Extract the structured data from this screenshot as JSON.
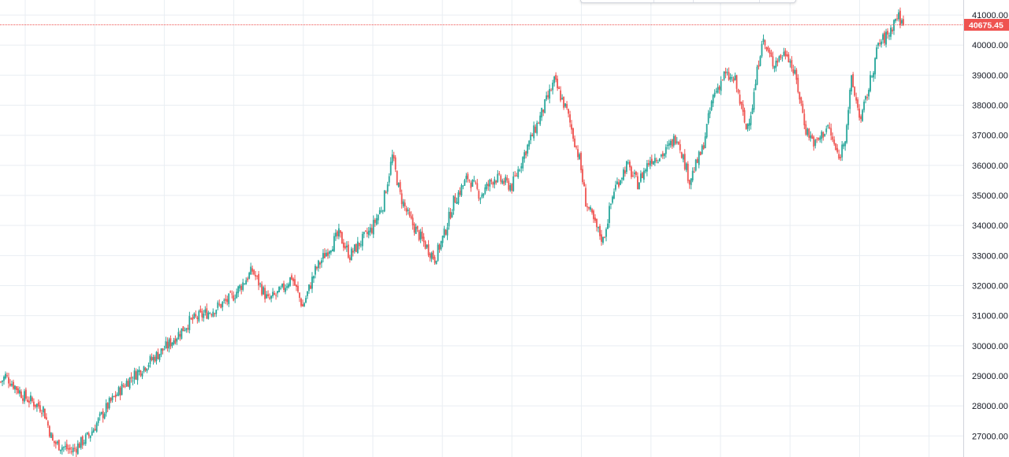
{
  "chart_data": {
    "type": "candlestick",
    "instrument": "",
    "title": "",
    "ylim": [
      26300,
      41500
    ],
    "y_ticks": [
      27000,
      28000,
      29000,
      30000,
      31000,
      32000,
      33000,
      34000,
      35000,
      36000,
      37000,
      38000,
      39000,
      40000,
      41000
    ],
    "y_tick_labels": [
      "27000.00",
      "28000.00",
      "29000.00",
      "30000.00",
      "31000.00",
      "32000.00",
      "33000.00",
      "34000.00",
      "35000.00",
      "36000.00",
      "37000.00",
      "38000.00",
      "39000.00",
      "40000.00",
      "41000.00"
    ],
    "grid": true,
    "y_axis_position": "right",
    "last_price": 40675.45,
    "last_price_label": "40675.45",
    "up_color": "#26a69a",
    "down_color": "#ef5350",
    "price_line_color": "#ef5350",
    "grid_color": "#e9eef3",
    "approx_close_path": [
      {
        "bar": 0,
        "close": 28800
      },
      {
        "bar": 3,
        "close": 29000
      },
      {
        "bar": 15,
        "close": 28300
      },
      {
        "bar": 27,
        "close": 27900
      },
      {
        "bar": 33,
        "close": 26800
      },
      {
        "bar": 45,
        "close": 26500
      },
      {
        "bar": 56,
        "close": 27000
      },
      {
        "bar": 68,
        "close": 28000
      },
      {
        "bar": 80,
        "close": 28800
      },
      {
        "bar": 93,
        "close": 29400
      },
      {
        "bar": 106,
        "close": 30000
      },
      {
        "bar": 120,
        "close": 30800
      },
      {
        "bar": 135,
        "close": 31200
      },
      {
        "bar": 147,
        "close": 31600
      },
      {
        "bar": 160,
        "close": 32500
      },
      {
        "bar": 170,
        "close": 31500
      },
      {
        "bar": 178,
        "close": 31800
      },
      {
        "bar": 185,
        "close": 32300
      },
      {
        "bar": 192,
        "close": 31300
      },
      {
        "bar": 200,
        "close": 32500
      },
      {
        "bar": 208,
        "close": 33200
      },
      {
        "bar": 215,
        "close": 33700
      },
      {
        "bar": 222,
        "close": 33000
      },
      {
        "bar": 228,
        "close": 33400
      },
      {
        "bar": 236,
        "close": 33900
      },
      {
        "bar": 243,
        "close": 34700
      },
      {
        "bar": 249,
        "close": 36300
      },
      {
        "bar": 254,
        "close": 35000
      },
      {
        "bar": 260,
        "close": 34200
      },
      {
        "bar": 268,
        "close": 33500
      },
      {
        "bar": 276,
        "close": 32900
      },
      {
        "bar": 282,
        "close": 33700
      },
      {
        "bar": 288,
        "close": 34800
      },
      {
        "bar": 297,
        "close": 35600
      },
      {
        "bar": 305,
        "close": 35000
      },
      {
        "bar": 314,
        "close": 35600
      },
      {
        "bar": 325,
        "close": 35300
      },
      {
        "bar": 333,
        "close": 36400
      },
      {
        "bar": 343,
        "close": 37600
      },
      {
        "bar": 352,
        "close": 38800
      },
      {
        "bar": 360,
        "close": 37800
      },
      {
        "bar": 368,
        "close": 36200
      },
      {
        "bar": 372,
        "close": 34800
      },
      {
        "bar": 378,
        "close": 34000
      },
      {
        "bar": 383,
        "close": 33500
      },
      {
        "bar": 390,
        "close": 35200
      },
      {
        "bar": 398,
        "close": 36000
      },
      {
        "bar": 405,
        "close": 35400
      },
      {
        "bar": 413,
        "close": 36200
      },
      {
        "bar": 422,
        "close": 36400
      },
      {
        "bar": 430,
        "close": 37000
      },
      {
        "bar": 438,
        "close": 35500
      },
      {
        "bar": 446,
        "close": 36500
      },
      {
        "bar": 453,
        "close": 38300
      },
      {
        "bar": 460,
        "close": 39000
      },
      {
        "bar": 467,
        "close": 38800
      },
      {
        "bar": 474,
        "close": 37200
      },
      {
        "bar": 478,
        "close": 38000
      },
      {
        "bar": 484,
        "close": 40200
      },
      {
        "bar": 491,
        "close": 39400
      },
      {
        "bar": 500,
        "close": 39800
      },
      {
        "bar": 506,
        "close": 38800
      },
      {
        "bar": 512,
        "close": 37200
      },
      {
        "bar": 518,
        "close": 36700
      },
      {
        "bar": 526,
        "close": 37300
      },
      {
        "bar": 533,
        "close": 36200
      },
      {
        "bar": 537,
        "close": 37000
      },
      {
        "bar": 541,
        "close": 38800
      },
      {
        "bar": 547,
        "close": 37500
      },
      {
        "bar": 553,
        "close": 38800
      },
      {
        "bar": 558,
        "close": 40000
      },
      {
        "bar": 565,
        "close": 40400
      },
      {
        "bar": 570,
        "close": 41000
      },
      {
        "bar": 574,
        "close": 40675
      }
    ]
  }
}
